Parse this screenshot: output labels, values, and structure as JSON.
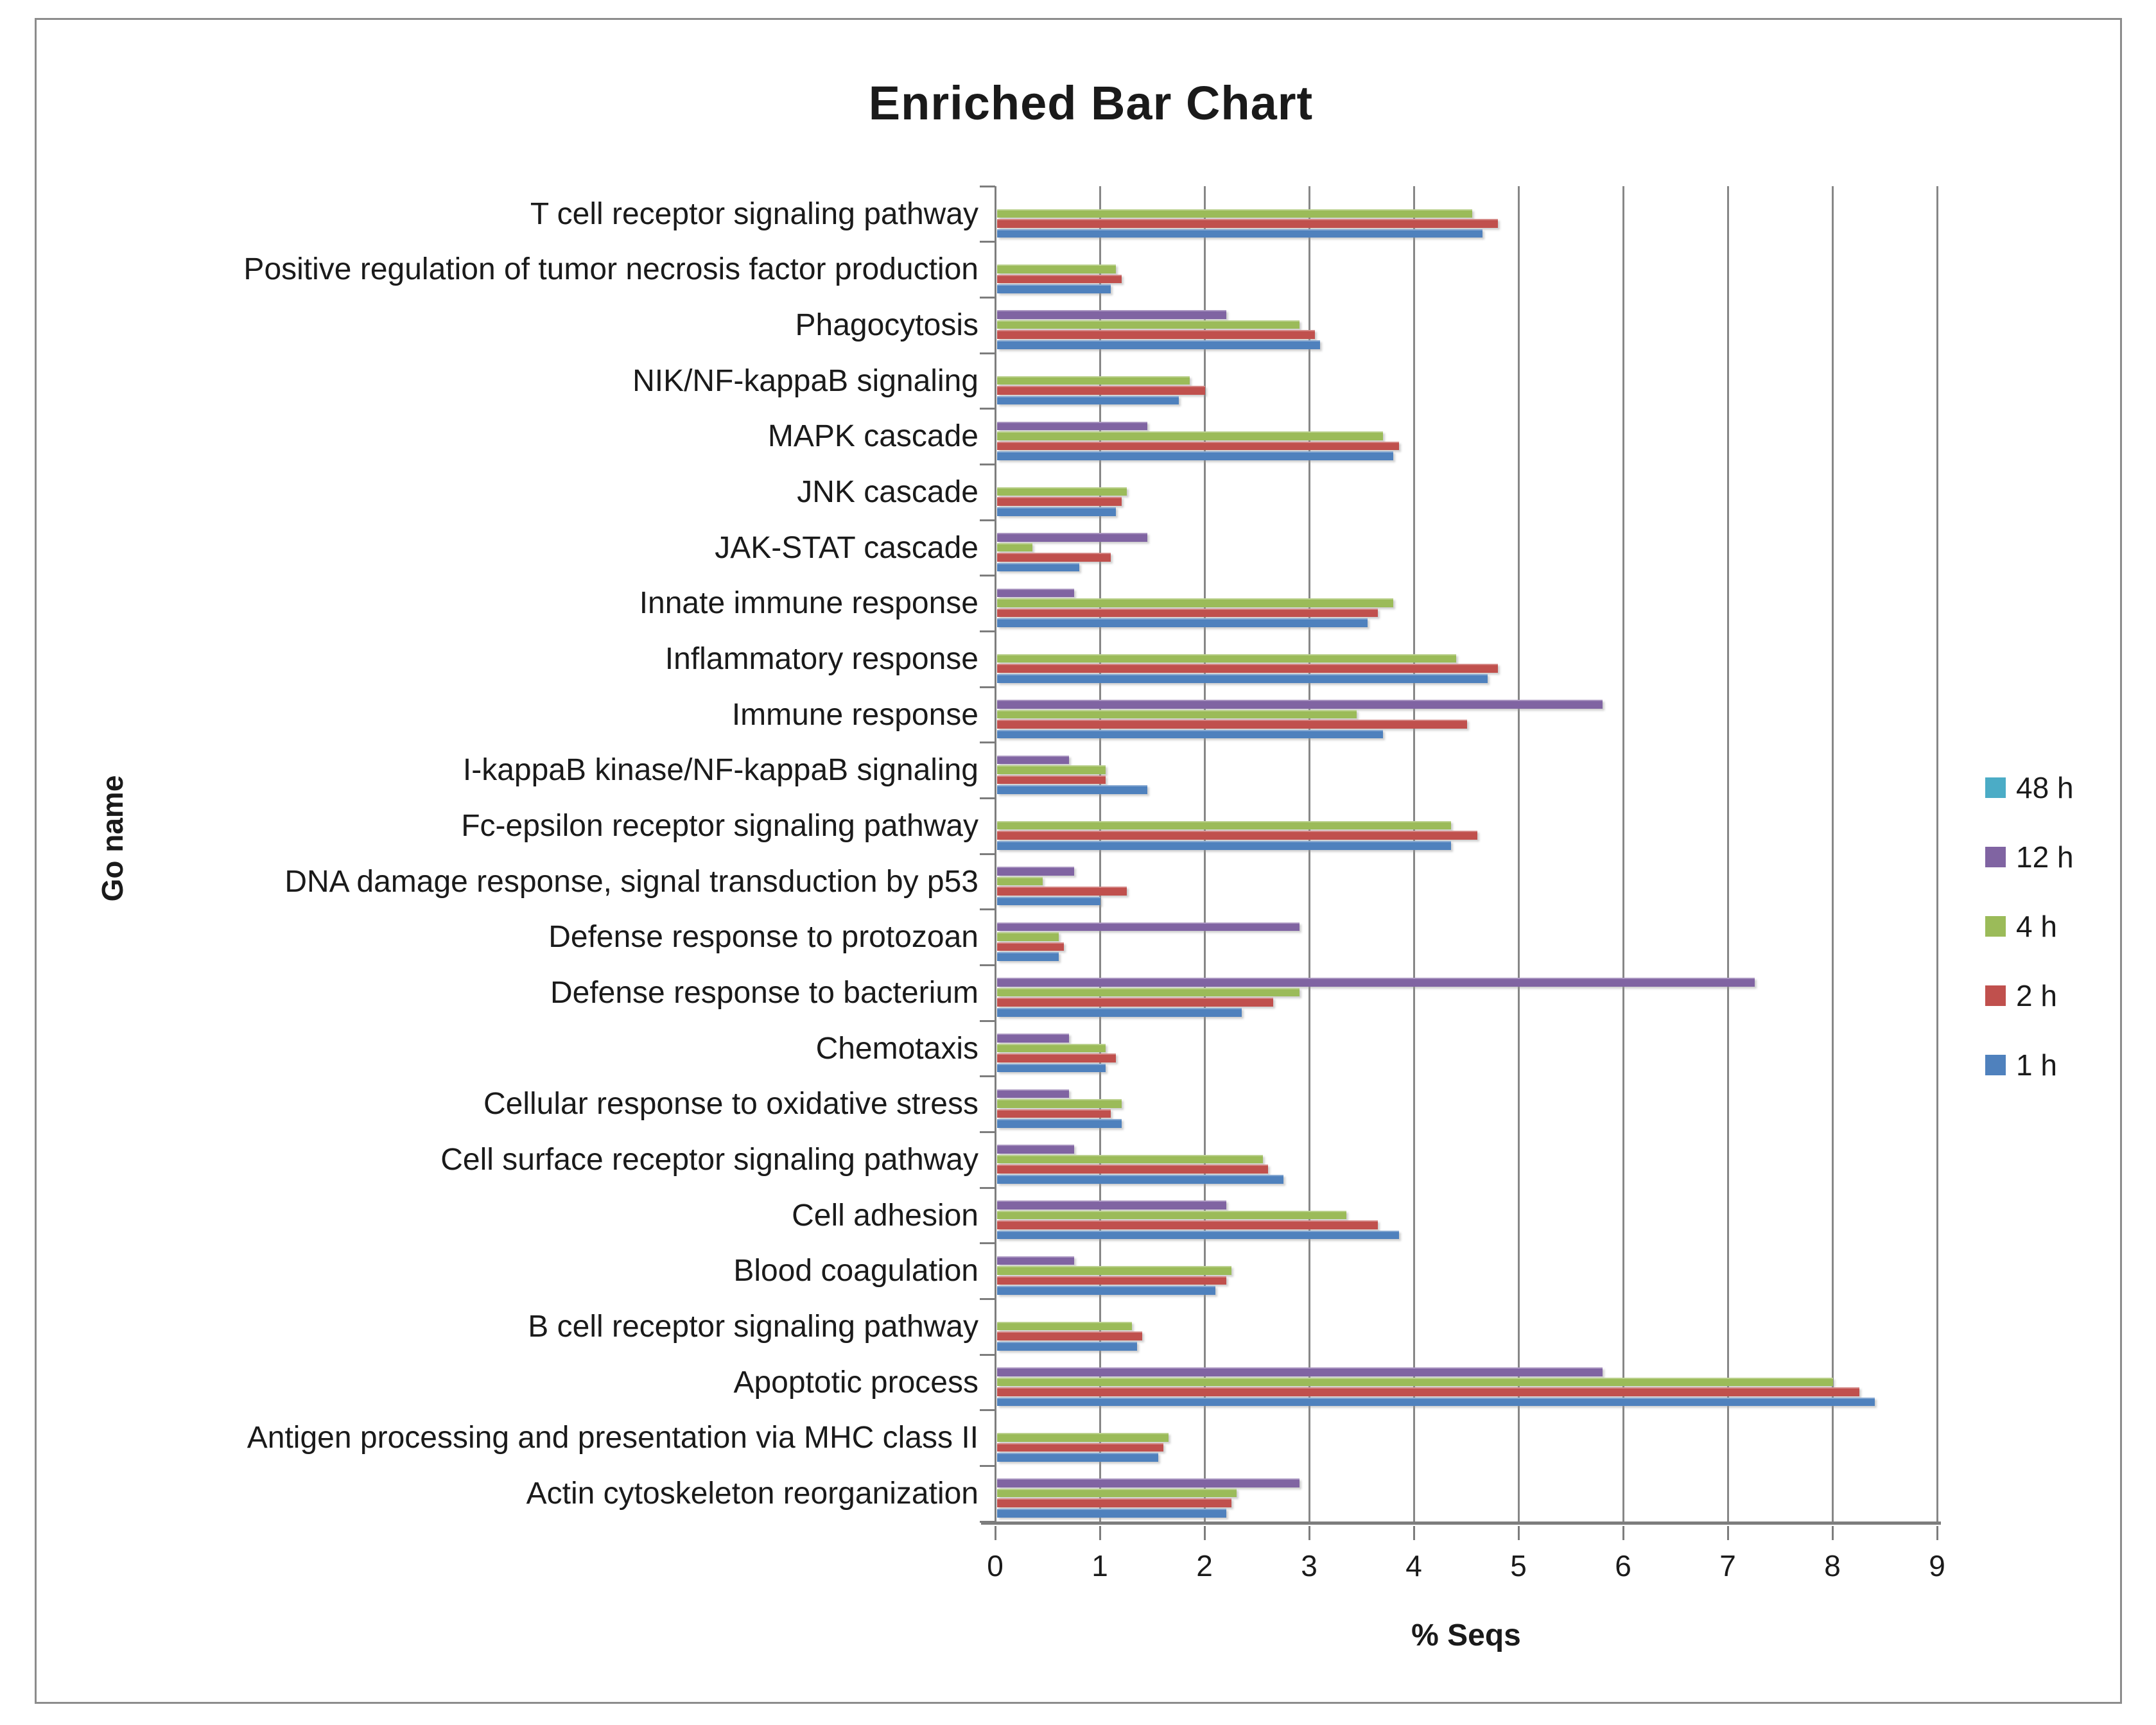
{
  "chart_data": {
    "type": "bar",
    "orientation": "horizontal",
    "title": "Enriched Bar Chart",
    "xlabel": "% Seqs",
    "ylabel": "Go name",
    "xlim": [
      0,
      9
    ],
    "xticks": [
      0,
      1,
      2,
      3,
      4,
      5,
      6,
      7,
      8,
      9
    ],
    "grid": true,
    "legend_position": "right",
    "categories": [
      "T cell receptor signaling pathway",
      "Positive regulation of tumor necrosis factor production",
      "Phagocytosis",
      "NIK/NF-kappaB signaling",
      "MAPK cascade",
      "JNK cascade",
      "JAK-STAT cascade",
      "Innate immune response",
      "Inflammatory response",
      "Immune response",
      "I-kappaB kinase/NF-kappaB signaling",
      "Fc-epsilon receptor signaling pathway",
      "DNA damage response, signal transduction by p53",
      "Defense response to protozoan",
      "Defense response to bacterium",
      "Chemotaxis",
      "Cellular response to oxidative stress",
      "Cell surface receptor signaling pathway",
      "Cell adhesion",
      "Blood coagulation",
      "B cell receptor signaling pathway",
      "Apoptotic process",
      "Antigen processing and presentation via MHC class II",
      "Actin cytoskeleton reorganization"
    ],
    "series": [
      {
        "name": "48 h",
        "color": "#4BACC6",
        "values": [
          0,
          0,
          0,
          0,
          0,
          0,
          0,
          0,
          0,
          0,
          0,
          0,
          0,
          0,
          0,
          0,
          0,
          0,
          0,
          0,
          0,
          0,
          0,
          0
        ]
      },
      {
        "name": "12 h",
        "color": "#8064A2",
        "values": [
          0,
          0,
          2.2,
          0,
          1.45,
          0,
          1.45,
          0.75,
          0,
          5.8,
          0.7,
          0,
          0.75,
          2.9,
          7.25,
          0.7,
          0.7,
          0.75,
          2.2,
          0.75,
          0,
          5.8,
          0,
          2.9
        ]
      },
      {
        "name": "4 h",
        "color": "#9BBB59",
        "values": [
          4.55,
          1.15,
          2.9,
          1.85,
          3.7,
          1.25,
          0.35,
          3.8,
          4.4,
          3.45,
          1.05,
          4.35,
          0.45,
          0.6,
          2.9,
          1.05,
          1.2,
          2.55,
          3.35,
          2.25,
          1.3,
          8.0,
          1.65,
          2.3
        ]
      },
      {
        "name": "2 h",
        "color": "#C0504D",
        "values": [
          4.8,
          1.2,
          3.05,
          2.0,
          3.85,
          1.2,
          1.1,
          3.65,
          4.8,
          4.5,
          1.05,
          4.6,
          1.25,
          0.65,
          2.65,
          1.15,
          1.1,
          2.6,
          3.65,
          2.2,
          1.4,
          8.25,
          1.6,
          2.25
        ]
      },
      {
        "name": "1 h",
        "color": "#4F81BD",
        "values": [
          4.65,
          1.1,
          3.1,
          1.75,
          3.8,
          1.15,
          0.8,
          3.55,
          4.7,
          3.7,
          1.45,
          4.35,
          1.0,
          0.6,
          2.35,
          1.05,
          1.2,
          2.75,
          3.85,
          2.1,
          1.35,
          8.4,
          1.55,
          2.2
        ]
      }
    ]
  }
}
